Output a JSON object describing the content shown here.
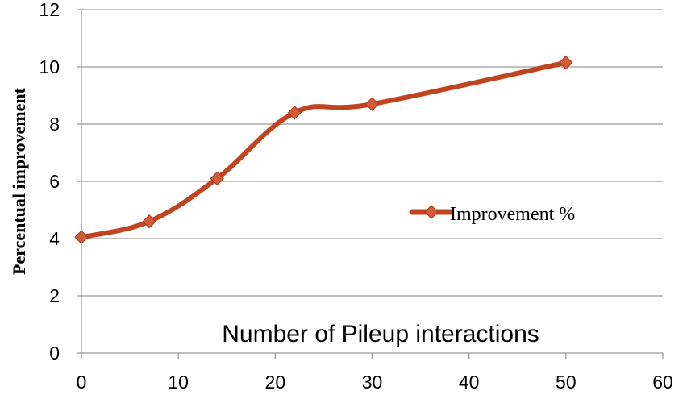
{
  "chart_data": {
    "type": "line",
    "title": "",
    "xlabel": "Number of Pileup interactions",
    "ylabel": "Percentual improvement",
    "xlim": [
      0,
      60
    ],
    "ylim": [
      0,
      12
    ],
    "xticks": [
      0,
      10,
      20,
      30,
      40,
      50,
      60
    ],
    "yticks": [
      0,
      2,
      4,
      6,
      8,
      10,
      12
    ],
    "xtick_labels": [
      "0",
      "10",
      "20",
      "30",
      "40",
      "50",
      "60"
    ],
    "ytick_labels": [
      "0",
      "2",
      "4",
      "6",
      "8",
      "10",
      "12"
    ],
    "grid": "horizontal",
    "legend_position": "right",
    "smooth": true,
    "marker": "diamond",
    "series": [
      {
        "name": "Improvement %",
        "color": "#c0441f",
        "marker_color": "#d35a3b",
        "x": [
          0,
          7,
          14,
          22,
          30,
          50
        ],
        "y": [
          4.05,
          4.6,
          6.1,
          8.4,
          8.7,
          10.15
        ]
      }
    ]
  }
}
